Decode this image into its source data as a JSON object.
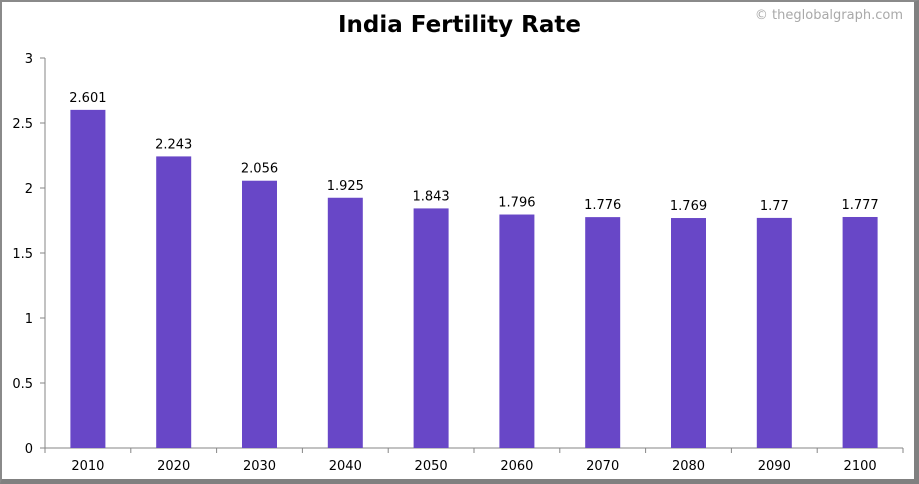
{
  "chart_data": {
    "type": "bar",
    "title": "India Fertility Rate",
    "watermark": "© theglobalgraph.com",
    "categories": [
      "2010",
      "2020",
      "2030",
      "2040",
      "2050",
      "2060",
      "2070",
      "2080",
      "2090",
      "2100"
    ],
    "values": [
      2.601,
      2.243,
      2.056,
      1.925,
      1.843,
      1.796,
      1.776,
      1.769,
      1.77,
      1.777
    ],
    "value_labels": [
      "2.601",
      "2.243",
      "2.056",
      "1.925",
      "1.843",
      "1.796",
      "1.776",
      "1.769",
      "1.77",
      "1.777"
    ],
    "xlabel": "",
    "ylabel": "",
    "ylim": [
      0,
      3
    ],
    "yticks": [
      "0",
      "0.5",
      "1",
      "1.5",
      "2",
      "2.5",
      "3"
    ],
    "grid": false,
    "bar_color": "#6847C7"
  }
}
